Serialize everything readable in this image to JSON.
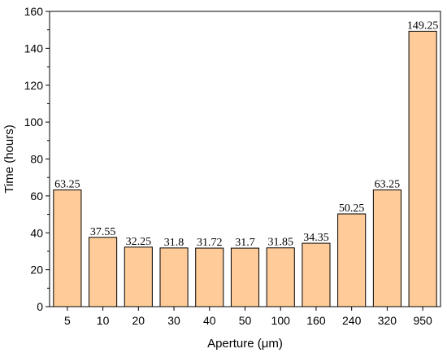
{
  "chart_data": {
    "type": "bar",
    "title": "",
    "xlabel": "Aperture (μm)",
    "ylabel": "Time (hours)",
    "categories": [
      "5",
      "10",
      "20",
      "30",
      "40",
      "50",
      "100",
      "160",
      "240",
      "320",
      "950"
    ],
    "values": [
      63.25,
      37.55,
      32.25,
      31.8,
      31.72,
      31.7,
      31.85,
      34.35,
      50.25,
      63.25,
      149.25
    ],
    "data_labels": [
      "63.25",
      "37.55",
      "32.25",
      "31.8",
      "31.72",
      "31.7",
      "31.85",
      "34.35",
      "50.25",
      "63.25",
      "149.25"
    ],
    "ylim": [
      0,
      160
    ],
    "yticks": [
      0,
      20,
      40,
      60,
      80,
      100,
      120,
      140,
      160
    ],
    "ytick_labels": [
      "0",
      "20",
      "40",
      "60",
      "80",
      "100",
      "120",
      "140",
      "160"
    ],
    "grid": false,
    "legend": "none",
    "bar_color": "#FFCC99",
    "bar_edge_color": "#000000"
  }
}
